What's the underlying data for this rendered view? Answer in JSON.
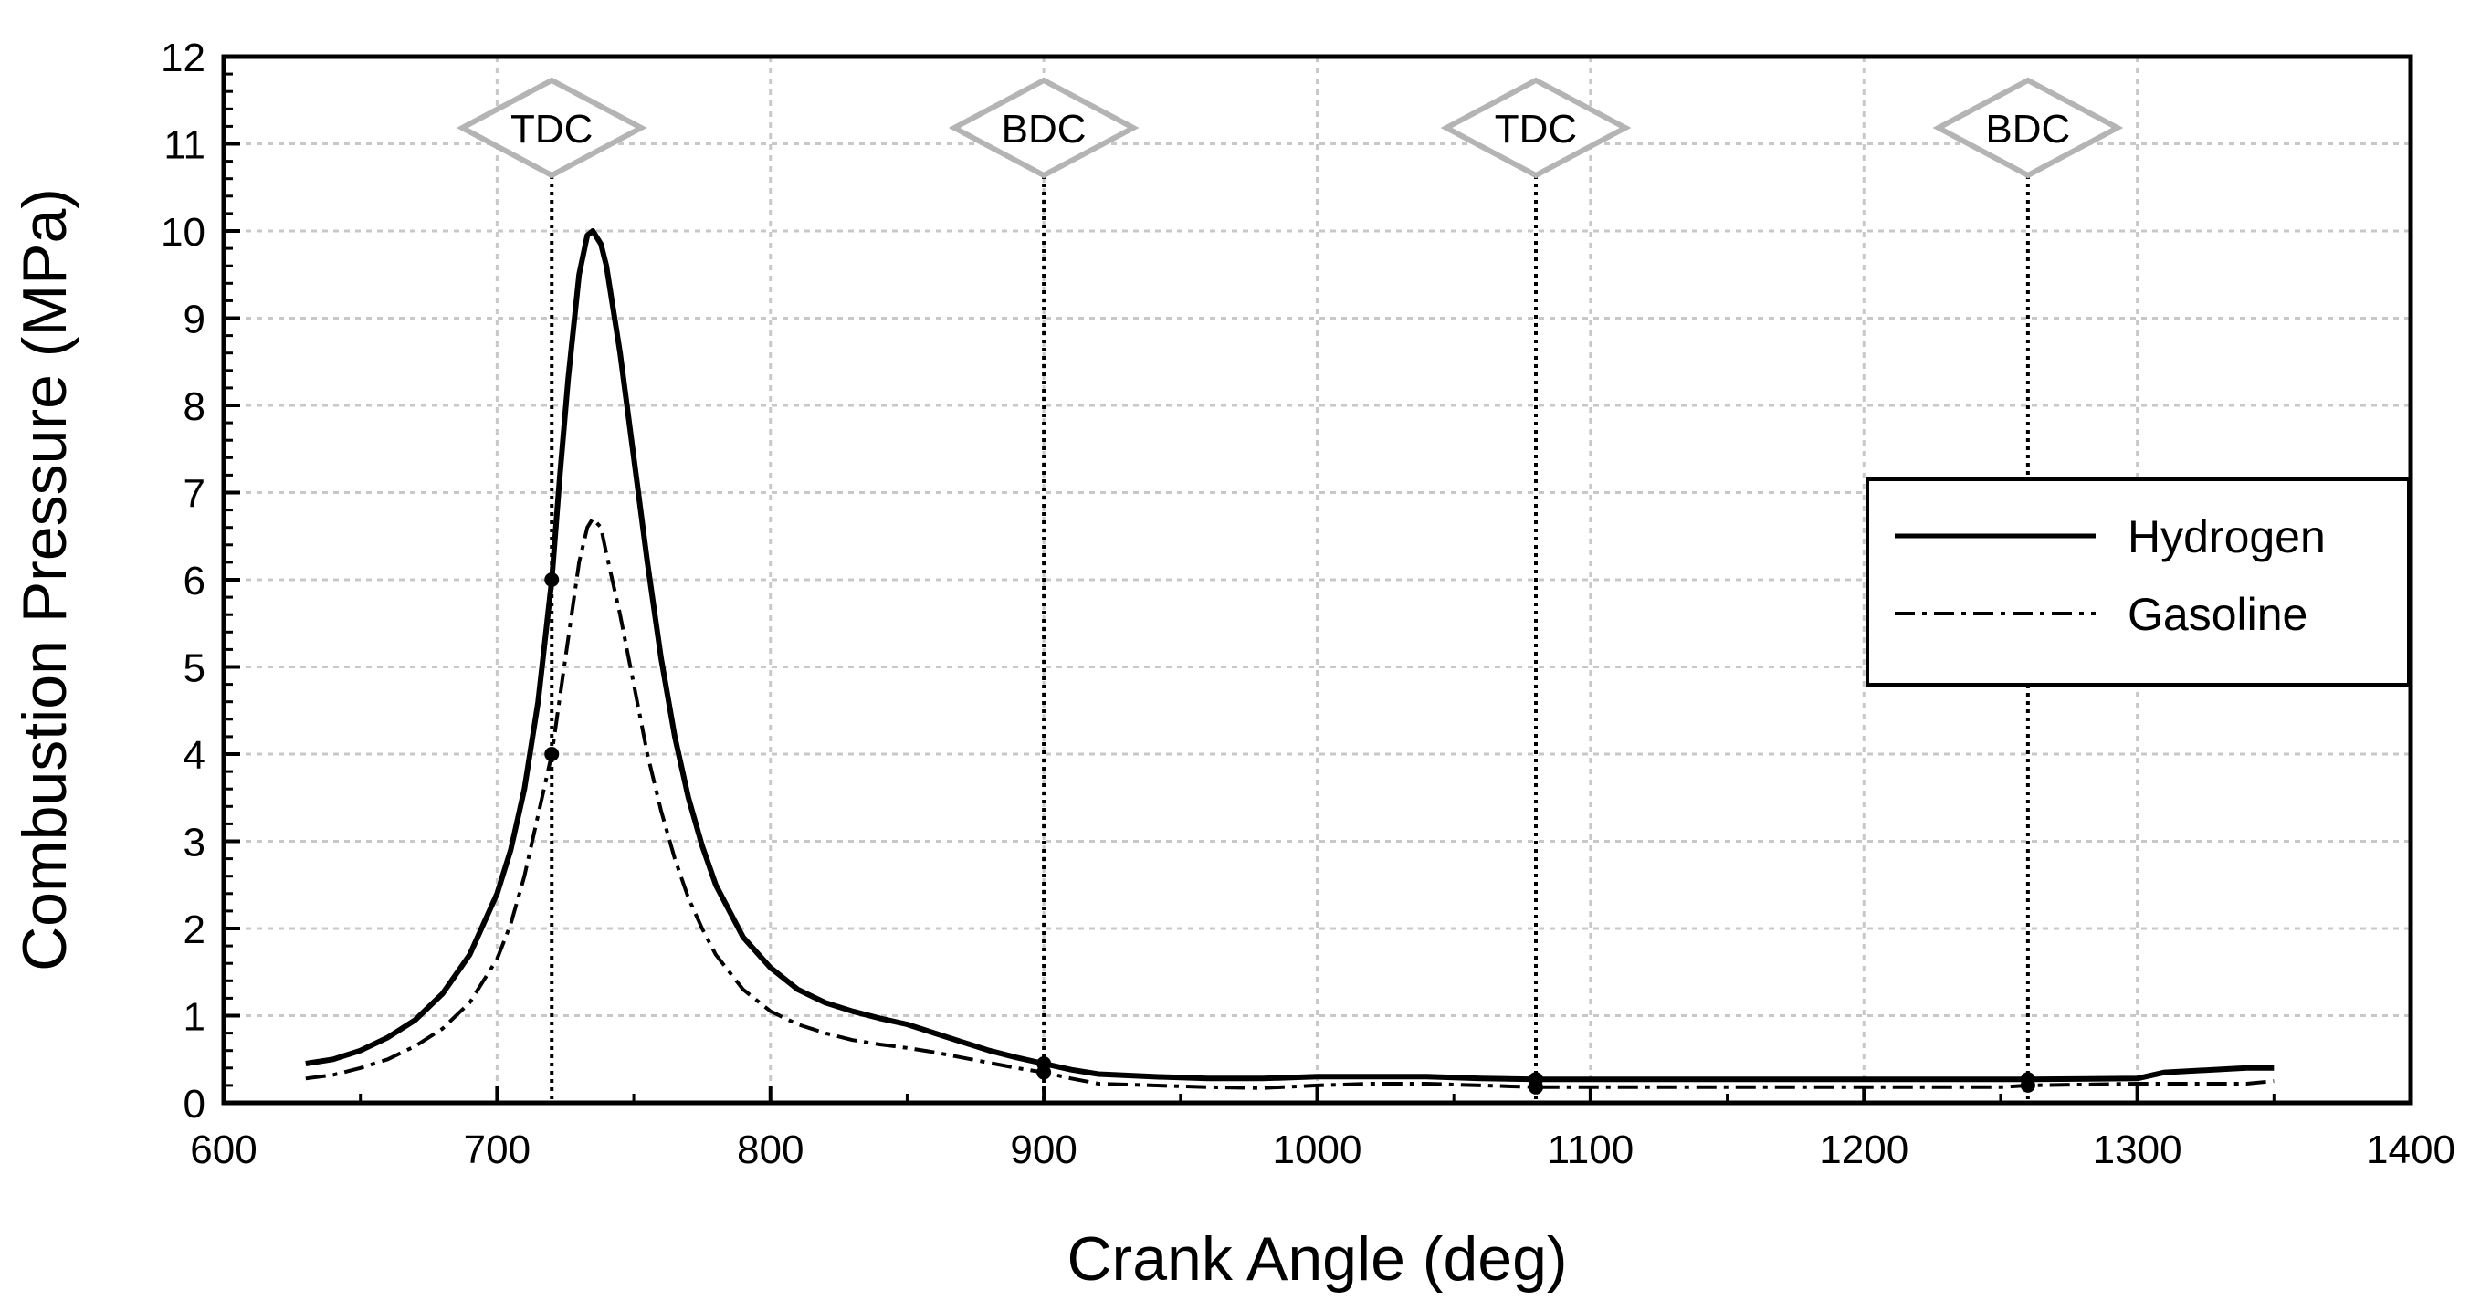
{
  "chart_data": {
    "type": "line",
    "xlabel": "Crank Angle (deg)",
    "ylabel": "Combustion Pressure (MPa)",
    "xlim": [
      600,
      1400
    ],
    "ylim": [
      0,
      12
    ],
    "xticks": [
      600,
      700,
      800,
      900,
      1000,
      1100,
      1200,
      1300,
      1400
    ],
    "yticks": [
      0,
      1,
      2,
      3,
      4,
      5,
      6,
      7,
      8,
      9,
      10,
      11,
      12
    ],
    "grid": true,
    "legend_position": "right",
    "markers": [
      {
        "label": "TDC",
        "x": 720
      },
      {
        "label": "BDC",
        "x": 900
      },
      {
        "label": "TDC",
        "x": 1080
      },
      {
        "label": "BDC",
        "x": 1260
      }
    ],
    "series": [
      {
        "name": "Hydrogen",
        "style": "solid",
        "x": [
          630,
          640,
          650,
          660,
          670,
          680,
          690,
          700,
          705,
          710,
          715,
          720,
          723,
          726,
          730,
          733,
          735,
          738,
          740,
          745,
          750,
          755,
          760,
          765,
          770,
          775,
          780,
          790,
          800,
          810,
          820,
          830,
          840,
          850,
          860,
          870,
          880,
          890,
          900,
          910,
          920,
          940,
          960,
          980,
          1000,
          1040,
          1060,
          1080,
          1100,
          1150,
          1200,
          1250,
          1260,
          1300,
          1310,
          1340,
          1350
        ],
        "y": [
          0.45,
          0.5,
          0.6,
          0.75,
          0.95,
          1.25,
          1.7,
          2.4,
          2.9,
          3.6,
          4.6,
          6.0,
          7.2,
          8.3,
          9.5,
          9.95,
          10.0,
          9.85,
          9.6,
          8.6,
          7.4,
          6.2,
          5.1,
          4.2,
          3.5,
          2.95,
          2.5,
          1.9,
          1.55,
          1.3,
          1.15,
          1.05,
          0.97,
          0.9,
          0.8,
          0.7,
          0.6,
          0.52,
          0.45,
          0.38,
          0.33,
          0.3,
          0.28,
          0.28,
          0.3,
          0.3,
          0.28,
          0.27,
          0.27,
          0.27,
          0.27,
          0.27,
          0.27,
          0.28,
          0.35,
          0.4,
          0.4
        ]
      },
      {
        "name": "Gasoline",
        "style": "dash-dot",
        "x": [
          630,
          640,
          650,
          660,
          670,
          680,
          690,
          700,
          705,
          710,
          715,
          720,
          725,
          730,
          733,
          735,
          738,
          740,
          745,
          750,
          755,
          760,
          765,
          770,
          775,
          780,
          790,
          800,
          810,
          820,
          830,
          840,
          850,
          860,
          870,
          880,
          890,
          900,
          910,
          920,
          940,
          960,
          980,
          1000,
          1020,
          1040,
          1060,
          1080,
          1100,
          1150,
          1200,
          1250,
          1260,
          1300,
          1340,
          1350
        ],
        "y": [
          0.28,
          0.32,
          0.4,
          0.5,
          0.65,
          0.85,
          1.15,
          1.65,
          2.05,
          2.6,
          3.3,
          4.0,
          5.1,
          6.2,
          6.6,
          6.7,
          6.6,
          6.3,
          5.6,
          4.8,
          4.0,
          3.35,
          2.8,
          2.35,
          2.0,
          1.7,
          1.3,
          1.05,
          0.9,
          0.8,
          0.72,
          0.67,
          0.63,
          0.58,
          0.52,
          0.46,
          0.4,
          0.35,
          0.28,
          0.22,
          0.2,
          0.18,
          0.17,
          0.2,
          0.22,
          0.22,
          0.2,
          0.18,
          0.18,
          0.18,
          0.18,
          0.18,
          0.2,
          0.22,
          0.22,
          0.25
        ]
      }
    ]
  }
}
